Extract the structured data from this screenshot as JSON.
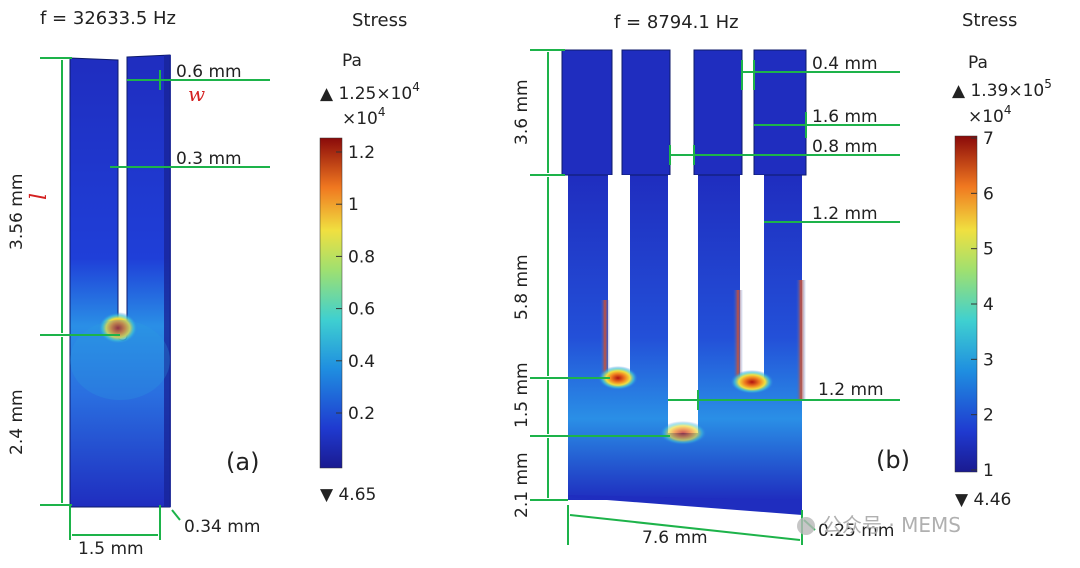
{
  "panel_a": {
    "frequency": "f = 32633.5 Hz",
    "label": "(a)",
    "dims": {
      "prong_width": "0.6 mm",
      "w_symbol": "w",
      "gap": "0.3 mm",
      "prong_length": "3.56 mm",
      "l_symbol": "l",
      "base_length": "2.4 mm",
      "width": "1.5 mm",
      "thickness": "0.34 mm"
    },
    "colorbar": {
      "title": "Stress",
      "unit": "Pa",
      "max_label": "▲ 1.25×10",
      "max_exp": "4",
      "scale": "×10",
      "scale_exp": "4",
      "ticks": [
        "1.2",
        "1",
        "0.8",
        "0.6",
        "0.4",
        "0.2"
      ],
      "min_label": "▼ 4.65"
    }
  },
  "panel_b": {
    "frequency": "f = 8794.1 Hz",
    "label": "(b)",
    "dims": {
      "top_height": "3.6 mm",
      "mid_height": "5.8 mm",
      "step_height": "1.5 mm",
      "base_height": "2.1 mm",
      "gap_small": "0.4 mm",
      "prong_width": "1.6 mm",
      "gap_mid": "0.8 mm",
      "slot_width": "1.2 mm",
      "center_gap": "1.2 mm",
      "width": "7.6 mm",
      "thickness": "0.25 mm"
    },
    "colorbar": {
      "title": "Stress",
      "unit": "Pa",
      "max_label": "▲ 1.39×10",
      "max_exp": "5",
      "scale": "×10",
      "scale_exp": "4",
      "ticks": [
        "7",
        "6",
        "5",
        "4",
        "3",
        "2",
        "1"
      ],
      "min_label": "▼ 4.46"
    }
  },
  "watermark": "公众号 · MEMS",
  "colors": {
    "dimension": "#1db34a",
    "beam": "#1f2dbf",
    "stress_high": "#c8141e",
    "symbol_red": "#d42020"
  }
}
